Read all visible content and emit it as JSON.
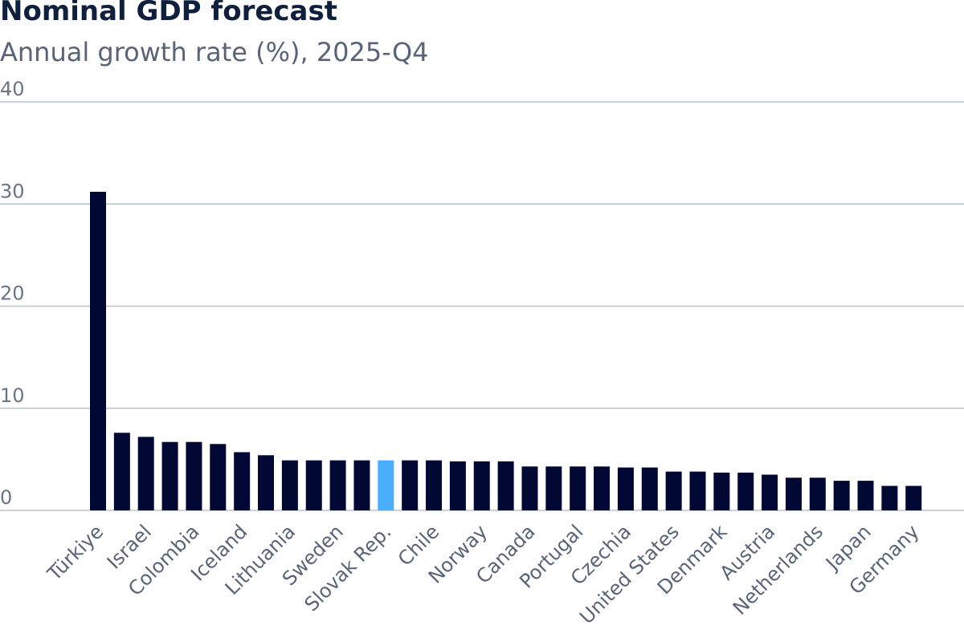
{
  "header": {
    "title": "Nominal GDP forecast",
    "subtitle": "Annual growth rate (%), 2025-Q4"
  },
  "colors": {
    "bar": "#000833",
    "highlight": "#4aaeff",
    "grid": "#b8c3cf"
  },
  "chart_data": {
    "type": "bar",
    "title": "Nominal GDP forecast",
    "subtitle": "Annual growth rate (%), 2025-Q4",
    "xlabel": "",
    "ylabel": "",
    "ylim": [
      0,
      40
    ],
    "yticks": [
      "0",
      "10",
      "20",
      "30",
      "40"
    ],
    "grid": true,
    "highlight_category": "Slovak Rep.",
    "categories": [
      "Türkiye",
      "",
      "Israel",
      "",
      "Colombia",
      "",
      "Iceland",
      "",
      "Lithuania",
      "",
      "Sweden",
      "",
      "Slovak Rep.",
      "",
      "Chile",
      "",
      "Norway",
      "",
      "Canada",
      "",
      "Portugal",
      "",
      "Czechia",
      "",
      "United States",
      "",
      "Denmark",
      "",
      "Austria",
      "",
      "Netherlands",
      "",
      "Japan",
      "",
      "Germany"
    ],
    "values": [
      31.2,
      7.6,
      7.2,
      6.7,
      6.7,
      6.5,
      5.7,
      5.4,
      4.9,
      4.9,
      4.9,
      4.9,
      4.9,
      4.9,
      4.9,
      4.8,
      4.8,
      4.8,
      4.3,
      4.3,
      4.3,
      4.3,
      4.2,
      4.2,
      3.8,
      3.8,
      3.7,
      3.7,
      3.5,
      3.2,
      3.2,
      2.9,
      2.9,
      2.4,
      2.4
    ]
  }
}
